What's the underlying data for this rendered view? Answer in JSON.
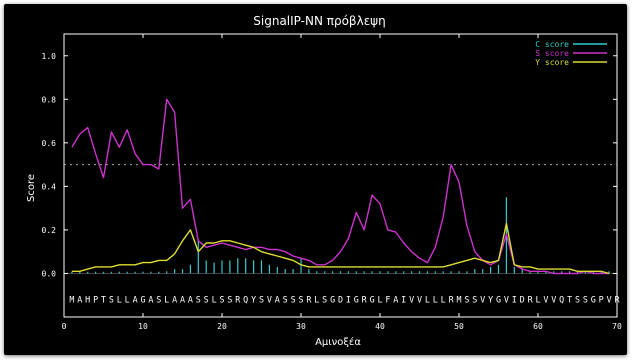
{
  "window": {
    "title": "SignalIP-NN πρόβλεψη"
  },
  "colors": {
    "background": "#000000",
    "plot_border": "#ffffff",
    "c_score": "#33cccc",
    "s_score": "#cc33cc",
    "y_score": "#dddd33",
    "threshold": "#aaaaaa"
  },
  "chart_data": {
    "type": "line",
    "title": "SignalIP-NN πρόβλεψη",
    "xlabel": "Αμινοξέα",
    "ylabel": "Score",
    "xlim": [
      0,
      70
    ],
    "ylim": [
      -0.2,
      1.1
    ],
    "x_ticks": [
      "0",
      "10",
      "20",
      "30",
      "40",
      "50",
      "60",
      "70"
    ],
    "y_ticks": [
      "0.0",
      "0.2",
      "0.4",
      "0.6",
      "0.8",
      "1.0"
    ],
    "grid": false,
    "legend_position": "top-right",
    "threshold": 0.5,
    "sequence": "MAHPTSLLAGASLAAASSLSSRQYSVASSSRLSGDIGRGLFAIVVLLLRMSSVYGVIDRLVVQTSSGPVR",
    "series": [
      {
        "name": "C score",
        "kind": "impulse",
        "x": [
          1,
          2,
          3,
          4,
          5,
          6,
          7,
          8,
          9,
          10,
          11,
          12,
          13,
          14,
          15,
          16,
          17,
          18,
          19,
          20,
          21,
          22,
          23,
          24,
          25,
          26,
          27,
          28,
          29,
          30,
          31,
          32,
          33,
          34,
          35,
          36,
          37,
          38,
          39,
          40,
          41,
          42,
          43,
          44,
          45,
          46,
          47,
          48,
          49,
          50,
          51,
          52,
          53,
          54,
          55,
          56,
          57,
          58,
          59,
          60,
          61,
          62,
          63,
          64,
          65,
          66,
          67,
          68,
          69
        ],
        "values": [
          0.0,
          0.0,
          0.0,
          0.0,
          0.0,
          0.0,
          0.0,
          0.0,
          0.0,
          0.0,
          0.0,
          0.0,
          0.01,
          0.02,
          0.02,
          0.04,
          0.15,
          0.06,
          0.05,
          0.06,
          0.06,
          0.07,
          0.07,
          0.06,
          0.06,
          0.04,
          0.03,
          0.02,
          0.02,
          0.07,
          0.02,
          0.01,
          0.01,
          0.01,
          0.01,
          0.01,
          0.01,
          0.01,
          0.01,
          0.01,
          0.01,
          0.01,
          0.01,
          0.01,
          0.01,
          0.01,
          0.01,
          0.01,
          0.01,
          0.01,
          0.01,
          0.02,
          0.02,
          0.03,
          0.04,
          0.35,
          0.03,
          0.02,
          0.01,
          0.01,
          0.01,
          0.01,
          0.01,
          0.01,
          0.01,
          0.01,
          0.01,
          0.01,
          0.01
        ]
      },
      {
        "name": "S score",
        "kind": "line",
        "x": [
          1,
          2,
          3,
          4,
          5,
          6,
          7,
          8,
          9,
          10,
          11,
          12,
          13,
          14,
          15,
          16,
          17,
          18,
          19,
          20,
          21,
          22,
          23,
          24,
          25,
          26,
          27,
          28,
          29,
          30,
          31,
          32,
          33,
          34,
          35,
          36,
          37,
          38,
          39,
          40,
          41,
          42,
          43,
          44,
          45,
          46,
          47,
          48,
          49,
          50,
          51,
          52,
          53,
          54,
          55,
          56,
          57,
          58,
          59,
          60,
          61,
          62,
          63,
          64,
          65,
          66,
          67,
          68,
          69
        ],
        "values": [
          0.58,
          0.64,
          0.67,
          0.55,
          0.44,
          0.65,
          0.58,
          0.66,
          0.55,
          0.5,
          0.5,
          0.48,
          0.8,
          0.74,
          0.3,
          0.34,
          0.15,
          0.12,
          0.13,
          0.14,
          0.13,
          0.12,
          0.11,
          0.12,
          0.12,
          0.11,
          0.11,
          0.1,
          0.08,
          0.07,
          0.06,
          0.04,
          0.04,
          0.06,
          0.1,
          0.16,
          0.28,
          0.2,
          0.36,
          0.32,
          0.2,
          0.19,
          0.14,
          0.1,
          0.07,
          0.05,
          0.12,
          0.26,
          0.5,
          0.42,
          0.22,
          0.1,
          0.06,
          0.04,
          0.06,
          0.18,
          0.04,
          0.02,
          0.01,
          0.01,
          0.01,
          0.0,
          0.0,
          0.0,
          0.0,
          0.01,
          0.0,
          0.0,
          0.0
        ]
      },
      {
        "name": "Y score",
        "kind": "line",
        "x": [
          1,
          2,
          3,
          4,
          5,
          6,
          7,
          8,
          9,
          10,
          11,
          12,
          13,
          14,
          15,
          16,
          17,
          18,
          19,
          20,
          21,
          22,
          23,
          24,
          25,
          26,
          27,
          28,
          29,
          30,
          31,
          32,
          33,
          34,
          35,
          36,
          37,
          38,
          39,
          40,
          41,
          42,
          43,
          44,
          45,
          46,
          47,
          48,
          49,
          50,
          51,
          52,
          53,
          54,
          55,
          56,
          57,
          58,
          59,
          60,
          61,
          62,
          63,
          64,
          65,
          66,
          67,
          68,
          69
        ],
        "values": [
          0.01,
          0.01,
          0.02,
          0.03,
          0.03,
          0.03,
          0.04,
          0.04,
          0.04,
          0.05,
          0.05,
          0.06,
          0.06,
          0.09,
          0.15,
          0.2,
          0.1,
          0.14,
          0.14,
          0.15,
          0.15,
          0.14,
          0.13,
          0.12,
          0.1,
          0.09,
          0.08,
          0.07,
          0.06,
          0.04,
          0.03,
          0.03,
          0.03,
          0.03,
          0.03,
          0.03,
          0.03,
          0.03,
          0.03,
          0.03,
          0.03,
          0.03,
          0.03,
          0.03,
          0.03,
          0.03,
          0.03,
          0.03,
          0.04,
          0.05,
          0.06,
          0.07,
          0.06,
          0.05,
          0.06,
          0.23,
          0.04,
          0.03,
          0.03,
          0.02,
          0.02,
          0.02,
          0.02,
          0.02,
          0.01,
          0.01,
          0.01,
          0.01,
          0.0
        ]
      }
    ]
  }
}
